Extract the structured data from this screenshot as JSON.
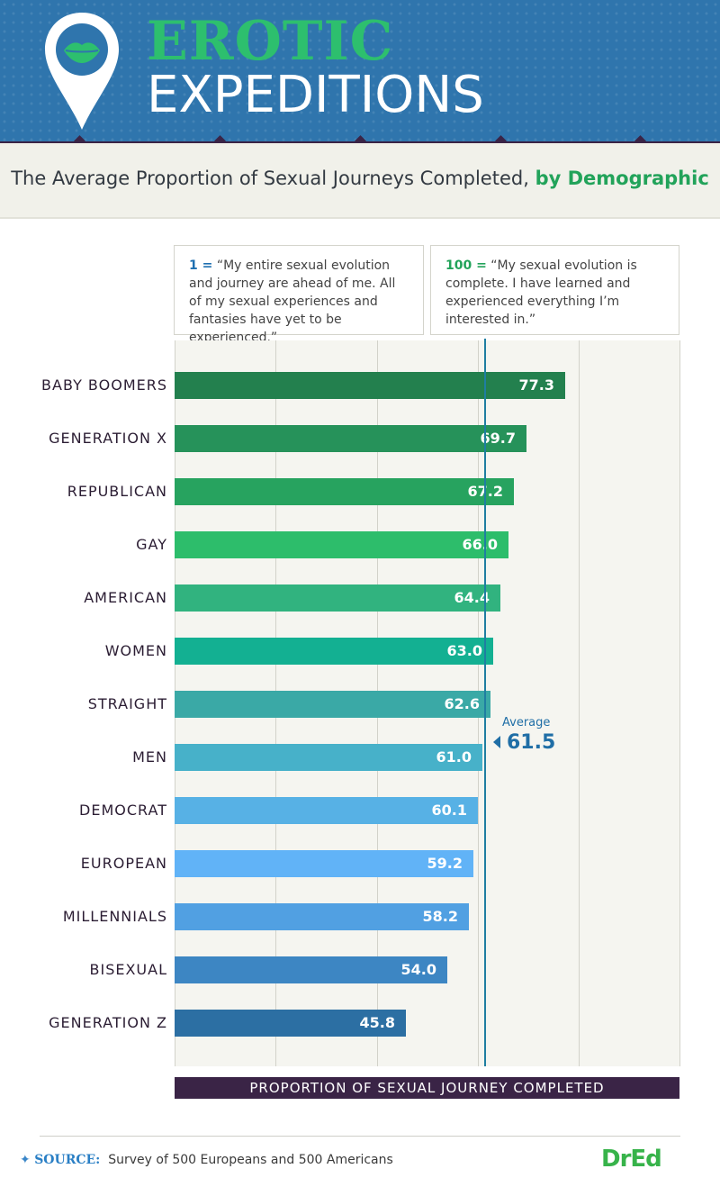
{
  "header": {
    "title_line1": "EROTIC",
    "title_line2": "EXPEDITIONS",
    "icon": "lips-pin-icon"
  },
  "subtitle": {
    "main": "The Average Proportion of Sexual Journeys Completed, ",
    "highlight": "by Demographic"
  },
  "definitions": {
    "low": {
      "number": "1 =",
      "text": "“My entire sexual evolution and journey are ahead of me. All of my sexual experiences and fantasies have yet to be experienced.”"
    },
    "high": {
      "number": "100 =",
      "text": "“My sexual evolution is complete. I have learned and experienced everything I’m interested in.”"
    }
  },
  "chart_data": {
    "type": "bar",
    "orientation": "horizontal",
    "title": "The Average Proportion of Sexual Journeys Completed, by Demographic",
    "xlabel": "PROPORTION OF SEXUAL JOURNEY COMPLETED",
    "ylabel": "",
    "xlim": [
      0,
      100
    ],
    "grid": true,
    "categories": [
      "BABY BOOMERS",
      "GENERATION X",
      "REPUBLICAN",
      "GAY",
      "AMERICAN",
      "WOMEN",
      "STRAIGHT",
      "MEN",
      "DEMOCRAT",
      "EUROPEAN",
      "MILLENNIALS",
      "BISEXUAL",
      "GENERATION Z"
    ],
    "values": [
      77.3,
      69.7,
      67.2,
      66.0,
      64.4,
      63.0,
      62.6,
      61.0,
      60.1,
      59.2,
      58.2,
      54.0,
      45.8
    ],
    "value_labels": [
      "77.3",
      "69.7",
      "67.2",
      "66.0",
      "64.4",
      "63.0",
      "62.6",
      "61.0",
      "60.1",
      "59.2",
      "58.2",
      "54.0",
      "45.8"
    ],
    "colors": [
      "#23804e",
      "#26925a",
      "#27a35f",
      "#2dbd6b",
      "#31b37f",
      "#13b092",
      "#3aa9a6",
      "#47b1c9",
      "#57b1e5",
      "#61b3f7",
      "#51a0e2",
      "#3d86c3",
      "#2c6fa3"
    ],
    "average": {
      "label": "Average",
      "value": 61.5,
      "value_text": "61.5",
      "color": "#1f6ea6"
    }
  },
  "footer": {
    "source_label": "SOURCE:",
    "source_text": "Survey of 500 Europeans and 500 Americans",
    "brand": "DrEd"
  }
}
